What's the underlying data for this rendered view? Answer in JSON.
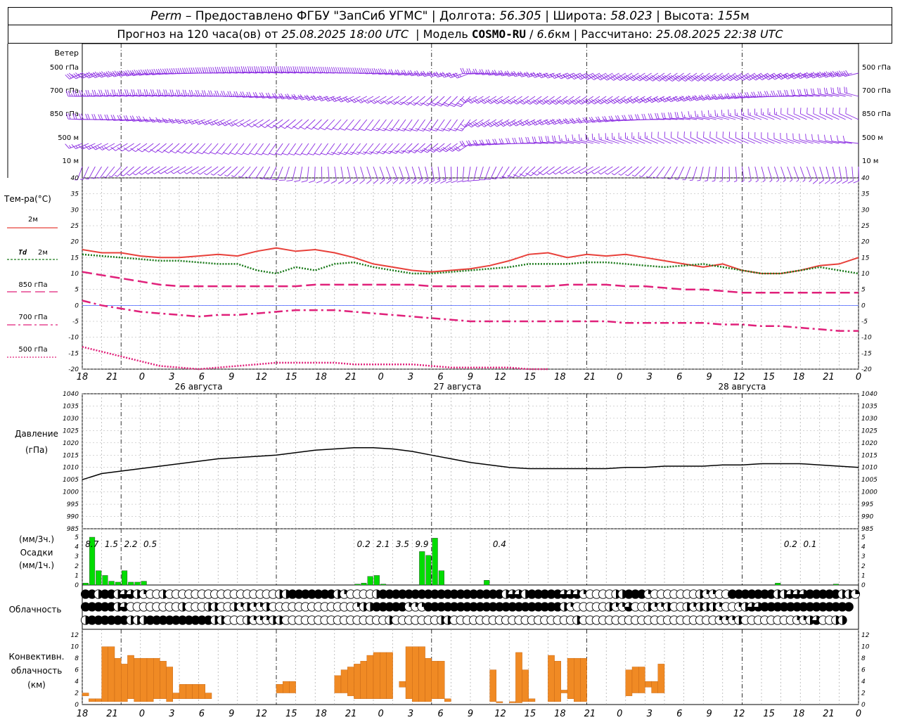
{
  "header": {
    "station": "Perm",
    "provider": "– Предоставлено ФГБУ \"ЗапСиб УГМС\"",
    "lon_label": "Долгота:",
    "lon": "56.305",
    "lat_label": "Широта:",
    "lat": "58.023",
    "alt_label": "Высота:",
    "alt": "155",
    "alt_unit": "м",
    "forecast_label": "Прогноз на 120 часа(ов) от",
    "forecast_start": "25.08.2025 18:00 UTC",
    "model_label": "Модель",
    "model": "COSMO-RU",
    "resolution": "6.6",
    "res_unit": "км",
    "computed_label": "Рассчитано:",
    "computed": "25.08.2025 22:38 UTC"
  },
  "labels": {
    "wind": "Ветер",
    "wind_levels": [
      "500 гПа",
      "700 гПа",
      "850 гПа",
      "500 м",
      "10  м"
    ],
    "temp": "Тем-ра(°С)",
    "t2m": "2м",
    "td": "Td",
    "td2m": "2м",
    "t850": "850 гПа",
    "t700": "700 гПа",
    "t500": "500 гПа",
    "pressure": "Давление",
    "pressure_unit": "(гПа)",
    "precip_unit3": "(мм/3ч.)",
    "precip": "Осадки",
    "precip_unit1": "(мм/1ч.)",
    "cloud": "Облачность",
    "conv1": "Конвективн.",
    "conv2": "облачность",
    "conv3": "(км)"
  },
  "colors": {
    "wind": "#8a2be2",
    "t2m": "#e8403a",
    "td": "#1a7a1a",
    "t850": "#e0207a",
    "t700": "#e0207a",
    "t500": "#e0207a",
    "zero_line": "#2040ff",
    "pressure": "#000000",
    "precip": "#00dd00",
    "conv": "#f08a24"
  },
  "chart_data": {
    "type": "line",
    "time": {
      "start": "25.08.2025 18:00 UTC",
      "step_hours": 1,
      "hours": 120,
      "tick_labels": [
        "18",
        "21",
        "0",
        "3",
        "6",
        "9",
        "12",
        "15",
        "18",
        "21",
        "0",
        "3",
        "6",
        "9",
        "12",
        "15",
        "18",
        "21",
        "0",
        "3",
        "6",
        "9",
        "12",
        "15",
        "18",
        "21",
        "0"
      ],
      "day_labels": [
        "26 августа",
        "27 августа",
        "28 августа"
      ]
    },
    "temperature": {
      "ylim": [
        -20,
        40
      ],
      "yticks": [
        40,
        35,
        30,
        25,
        20,
        15,
        10,
        5,
        0,
        -5,
        -10,
        -15,
        -20
      ],
      "hours": [
        0,
        3,
        6,
        9,
        12,
        15,
        18,
        21,
        24,
        27,
        30,
        33,
        36,
        39,
        42,
        45,
        48,
        51,
        54,
        57,
        60,
        63,
        66,
        69,
        72,
        75,
        78,
        81,
        84,
        87,
        90,
        93,
        96,
        99,
        102,
        105,
        108,
        111,
        114,
        117,
        120
      ],
      "series": [
        {
          "key": "t2m",
          "values": [
            17.5,
            16.5,
            16.5,
            15.5,
            15,
            15,
            15.5,
            16,
            15.5,
            17,
            18,
            17,
            17.5,
            16.5,
            15,
            13,
            12,
            11,
            10.5,
            11,
            11.5,
            12.5,
            14,
            16,
            16.5,
            15,
            16,
            15.5,
            16,
            15,
            14,
            13,
            12,
            13,
            11,
            10,
            10,
            11,
            12.5,
            13,
            15
          ]
        },
        {
          "key": "td",
          "values": [
            16,
            15.5,
            15,
            14.5,
            14,
            14,
            13.5,
            13,
            13,
            11,
            10,
            12,
            11,
            13,
            13.5,
            12,
            11,
            10,
            10,
            10.5,
            11,
            11.5,
            12,
            13,
            13,
            13,
            13.5,
            13.5,
            13,
            12.5,
            12,
            12.5,
            13,
            12,
            11,
            10,
            10,
            11,
            12,
            11,
            10
          ]
        },
        {
          "key": "t850",
          "values": [
            10.5,
            9.5,
            8.5,
            7.5,
            6.5,
            6,
            6,
            6,
            6,
            6,
            6,
            6,
            6.5,
            6.5,
            6.5,
            6.5,
            6.5,
            6.5,
            6,
            6,
            6,
            6,
            6,
            6,
            6,
            6.5,
            6.5,
            6.5,
            6,
            6,
            5.5,
            5,
            5,
            4.5,
            4,
            4,
            4,
            4,
            4,
            4,
            4
          ]
        },
        {
          "key": "t700",
          "values": [
            1.5,
            0,
            -1,
            -2,
            -2.5,
            -3,
            -3.5,
            -3,
            -3,
            -2.5,
            -2,
            -1.5,
            -1.5,
            -1.5,
            -2,
            -2.5,
            -3,
            -3.5,
            -4,
            -4.5,
            -5,
            -5,
            -5,
            -5,
            -5,
            -5,
            -5,
            -5,
            -5.5,
            -5.5,
            -5.5,
            -5.5,
            -5.5,
            -6,
            -6,
            -6.5,
            -6.5,
            -7,
            -7.5,
            -8,
            -8
          ]
        },
        {
          "key": "t500",
          "values": [
            -13,
            -14.5,
            -16,
            -17.5,
            -19,
            -19.5,
            -20,
            -19.5,
            -19,
            -18.5,
            -18,
            -18,
            -18,
            -18,
            -18.5,
            -18.5,
            -18.5,
            -18.5,
            -19,
            -19.5,
            -19.5,
            -19.5,
            -19.5,
            -20,
            -20,
            null,
            null,
            null,
            null,
            null,
            null,
            null,
            null,
            null,
            null,
            null,
            null,
            null,
            null,
            null,
            null
          ]
        }
      ]
    },
    "pressure": {
      "ylim": [
        985,
        1040
      ],
      "yticks": [
        1040,
        1035,
        1030,
        1025,
        1020,
        1015,
        1010,
        1005,
        1000,
        995,
        990,
        985
      ],
      "hours": [
        0,
        3,
        6,
        9,
        12,
        15,
        18,
        21,
        24,
        27,
        30,
        33,
        36,
        39,
        42,
        45,
        48,
        51,
        54,
        57,
        60,
        63,
        66,
        69,
        72,
        75,
        78,
        81,
        84,
        87,
        90,
        93,
        96,
        99,
        102,
        105,
        108,
        111,
        114,
        117,
        120
      ],
      "values": [
        1005,
        1007.5,
        1008.5,
        1009.5,
        1010.5,
        1011.5,
        1012.5,
        1013.5,
        1014,
        1014.5,
        1015,
        1016,
        1017,
        1017.5,
        1018,
        1018,
        1017.5,
        1016.5,
        1015,
        1013.5,
        1012,
        1011,
        1010,
        1009.5,
        1009.5,
        1009.5,
        1009.5,
        1009.5,
        1010,
        1010,
        1010.5,
        1010.5,
        1010.5,
        1011,
        1011,
        1011.5,
        1011.5,
        1011.5,
        1011,
        1010.5,
        1010
      ]
    },
    "precipitation": {
      "ylim": [
        0,
        5
      ],
      "yticks": [
        5,
        4,
        3,
        2,
        1,
        0
      ],
      "hourly": [
        [
          1,
          0.2
        ],
        [
          2,
          5
        ],
        [
          3,
          1.5
        ],
        [
          4,
          1
        ],
        [
          5,
          0.4
        ],
        [
          6,
          0.3
        ],
        [
          7,
          1.5
        ],
        [
          8,
          0.3
        ],
        [
          9,
          0.3
        ],
        [
          10,
          0.4
        ],
        [
          43,
          0.1
        ],
        [
          44,
          0.2
        ],
        [
          45,
          0.9
        ],
        [
          46,
          1
        ],
        [
          47,
          0.1
        ],
        [
          53,
          3.5
        ],
        [
          54,
          3.1
        ],
        [
          55,
          4.9
        ],
        [
          56,
          1.5
        ],
        [
          63,
          0.5
        ],
        [
          108,
          0.2
        ],
        [
          117,
          0.1
        ]
      ],
      "totals_3h": [
        {
          "hour": 1.5,
          "text": "8.7"
        },
        {
          "hour": 4.5,
          "text": "1.5"
        },
        {
          "hour": 7.5,
          "text": "2.2"
        },
        {
          "hour": 10.5,
          "text": "0.5"
        },
        {
          "hour": 43.5,
          "text": "0.2"
        },
        {
          "hour": 46.5,
          "text": "2.1"
        },
        {
          "hour": 49.5,
          "text": "3.5"
        },
        {
          "hour": 52.5,
          "text": "9.9"
        },
        {
          "hour": 64.5,
          "text": "0.4"
        },
        {
          "hour": 109.5,
          "text": "0.2"
        },
        {
          "hour": 112.5,
          "text": "0.1"
        }
      ]
    },
    "cloudiness": {
      "levels": [
        "high",
        "middle",
        "low"
      ],
      "rows": [
        "FFHFFHLLHQEEHEEEEEEEEEEEEEEEEEHHFFFFFFFHQEEEEHFFFFFFFFFFFFFFFFFFFHLLHFFFFFLLLQEEEEHHFFFQEEEEEEEHQQEEFFFFFFFHHLLLFFFFFHHQ",
        "FFFFFHLEEEEEEEEHEEEHHEEHQHQQHEEEEEEEEEEEEEQHHFFFFFQQQFFFFFFFFFFFFFFFFFFFFFHQEEEEEHQQLEEHQQHEEHQHHHQEEQHLLFFFFFFFFFFFFFF",
        "HFFFFFFHHHFFFFFFFFFFHHEEEHQQQHHEEEEEEEEEEEEEEEEHEEEEEEEHHEEEEEEEEEEEEEEEEEEEHEEEEEEEEEEEEEEEEEEEEEQQQHEEEEEEEEQQHLEEHH"
      ],
      "legend_codes": {
        "F": "overcast",
        "L": "mostly_cloudy",
        "H": "half",
        "Q": "few",
        "E": "clear"
      }
    },
    "convective_cloud_km": {
      "ylim": [
        0,
        13
      ],
      "yticks": [
        12,
        10,
        8,
        6,
        4,
        2,
        0
      ],
      "hourly_ranges": [
        [
          0,
          1.5,
          2
        ],
        [
          1,
          0.5,
          1
        ],
        [
          2,
          0.5,
          1
        ],
        [
          3,
          0.5,
          10
        ],
        [
          4,
          0.5,
          10
        ],
        [
          5,
          0.5,
          8
        ],
        [
          6,
          0.5,
          7
        ],
        [
          7,
          1,
          8.5
        ],
        [
          8,
          0.5,
          8
        ],
        [
          9,
          0.5,
          8
        ],
        [
          10,
          0.5,
          8
        ],
        [
          11,
          1,
          8
        ],
        [
          12,
          1,
          7.5
        ],
        [
          13,
          0.5,
          6.5
        ],
        [
          14,
          1,
          2
        ],
        [
          15,
          1,
          3.5
        ],
        [
          16,
          1,
          3.5
        ],
        [
          17,
          1,
          3.5
        ],
        [
          18,
          1,
          3.5
        ],
        [
          19,
          1,
          2
        ],
        [
          30,
          2,
          3.5
        ],
        [
          31,
          2,
          4
        ],
        [
          32,
          2,
          4
        ],
        [
          39,
          2,
          5
        ],
        [
          40,
          2,
          6
        ],
        [
          41,
          1.5,
          6.5
        ],
        [
          42,
          1,
          7
        ],
        [
          43,
          1,
          7.5
        ],
        [
          44,
          1,
          8.5
        ],
        [
          45,
          1,
          9
        ],
        [
          46,
          1,
          9
        ],
        [
          47,
          1,
          9
        ],
        [
          49,
          3,
          4
        ],
        [
          50,
          1,
          10
        ],
        [
          51,
          0.5,
          10
        ],
        [
          52,
          0.5,
          10
        ],
        [
          53,
          0.5,
          8
        ],
        [
          54,
          1,
          7.5
        ],
        [
          55,
          1,
          7.5
        ],
        [
          56,
          0.5,
          1
        ],
        [
          63,
          0.5,
          6
        ],
        [
          64,
          0.3,
          0.5
        ],
        [
          66,
          0.3,
          0.5
        ],
        [
          67,
          0.3,
          9
        ],
        [
          68,
          0.5,
          6
        ],
        [
          69,
          0.5,
          1
        ],
        [
          72,
          0.5,
          8.5
        ],
        [
          73,
          0.5,
          7.5
        ],
        [
          74,
          2,
          2.5
        ],
        [
          75,
          1,
          8
        ],
        [
          76,
          0.5,
          8
        ],
        [
          77,
          0.5,
          8
        ],
        [
          84,
          1.5,
          6
        ],
        [
          85,
          2,
          6.5
        ],
        [
          86,
          2,
          6.5
        ],
        [
          87,
          3,
          4
        ],
        [
          88,
          2,
          4
        ],
        [
          89,
          2,
          7
        ]
      ]
    }
  }
}
